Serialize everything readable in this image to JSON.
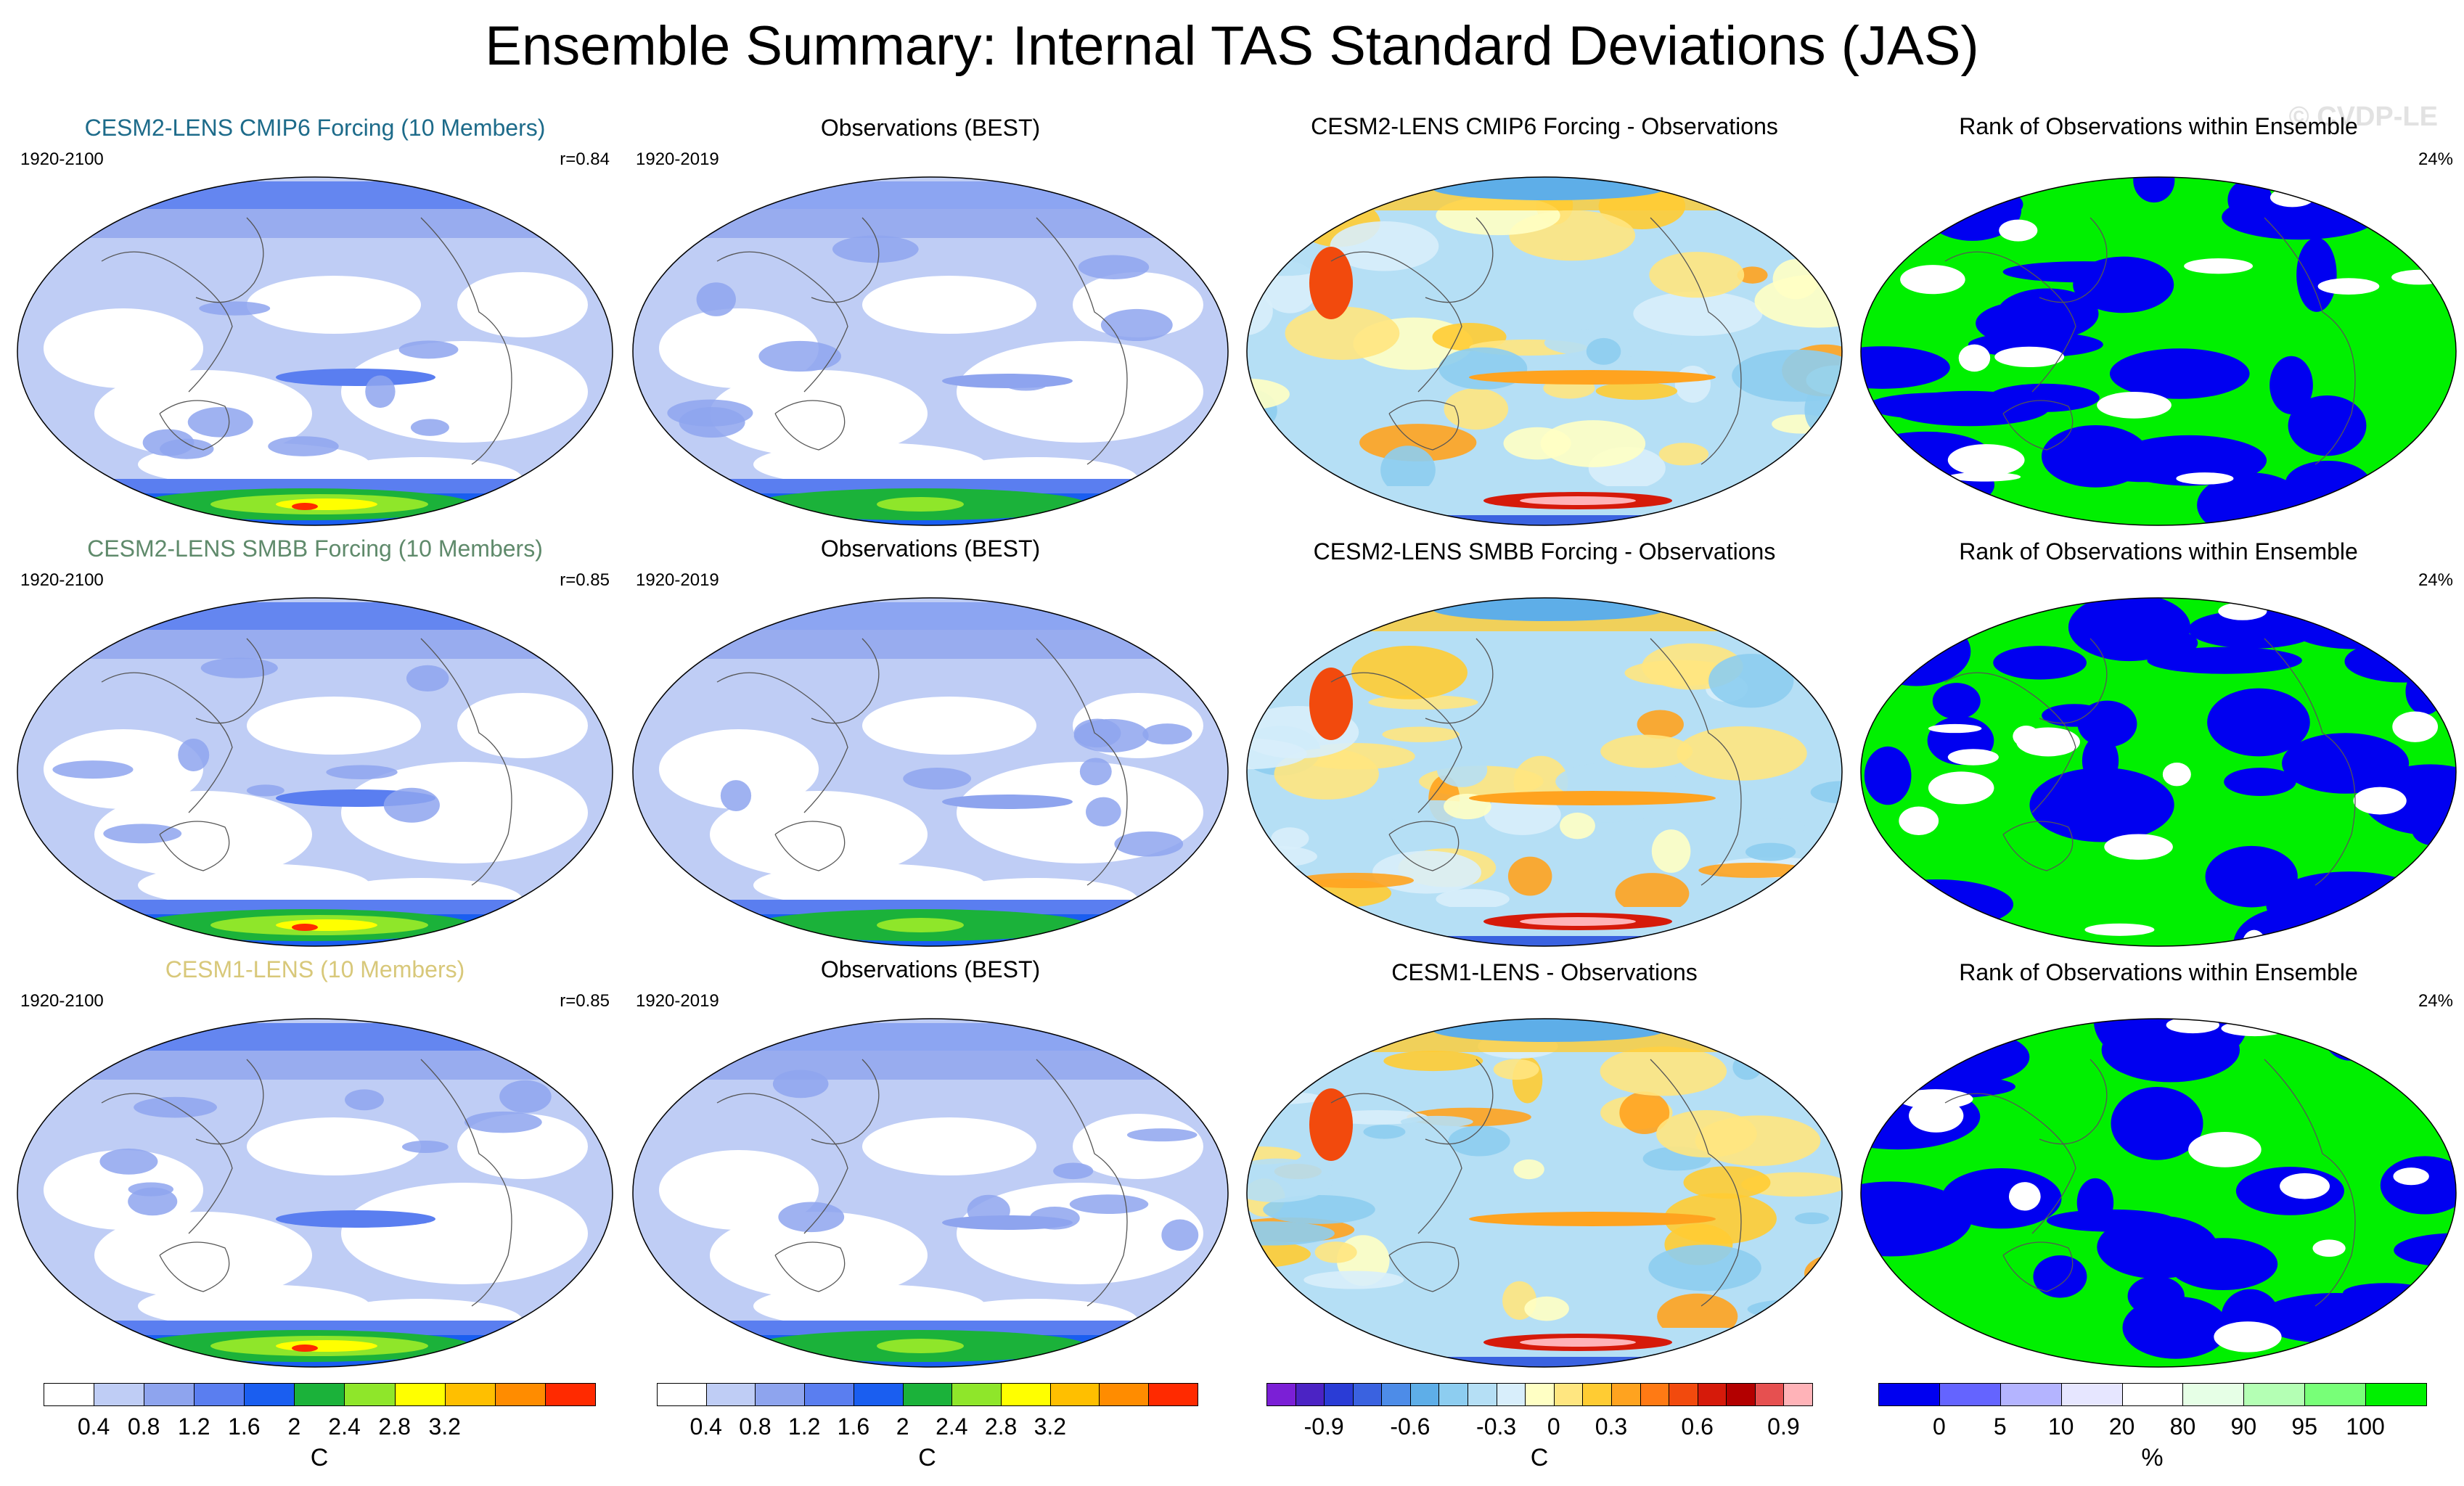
{
  "title": "Ensemble Summary: Internal TAS Standard Deviations (JAS)",
  "watermark": "© CVDP-LE",
  "rows": [
    {
      "model": {
        "title": "CESM2-LENS CMIP6 Forcing (10 Members)",
        "title_color": "#1d6b8a",
        "period": "1920-2100",
        "r": "r=0.84"
      },
      "obs": {
        "title": "Observations (BEST)",
        "period": "1920-2019"
      },
      "diff": {
        "title": "CESM2-LENS CMIP6 Forcing - Observations"
      },
      "rank": {
        "title": "Rank of Observations within Ensemble",
        "pct": "24%"
      }
    },
    {
      "model": {
        "title": "CESM2-LENS SMBB Forcing (10 Members)",
        "title_color": "#5f8a6b",
        "period": "1920-2100",
        "r": "r=0.85"
      },
      "obs": {
        "title": "Observations (BEST)",
        "period": "1920-2019"
      },
      "diff": {
        "title": "CESM2-LENS SMBB Forcing - Observations"
      },
      "rank": {
        "title": "Rank of Observations within Ensemble",
        "pct": "24%"
      }
    },
    {
      "model": {
        "title": "CESM1-LENS (10 Members)",
        "title_color": "#d8c87a",
        "period": "1920-2100",
        "r": "r=0.85"
      },
      "obs": {
        "title": "Observations (BEST)",
        "period": "1920-2019"
      },
      "diff": {
        "title": "CESM1-LENS - Observations"
      },
      "rank": {
        "title": "Rank of Observations within Ensemble",
        "pct": "24%"
      }
    }
  ],
  "colorbars": {
    "sd": {
      "colors": [
        "#ffffff",
        "#bfcdf5",
        "#8ea4ee",
        "#5a7ef0",
        "#1a5ef0",
        "#1bb23a",
        "#8fe62a",
        "#ffff00",
        "#ffbf00",
        "#ff8c00",
        "#ff2a00"
      ],
      "ticks": [
        "0.4",
        "0.8",
        "1.2",
        "1.6",
        "2",
        "2.4",
        "2.8",
        "3.2"
      ],
      "unit": "C"
    },
    "diff": {
      "colors": [
        "#7b1fd6",
        "#4b23c4",
        "#2a3cd6",
        "#3a62e0",
        "#4d8ce8",
        "#5eaee8",
        "#8dcdf0",
        "#b5dff5",
        "#d8eefb",
        "#ffffc4",
        "#ffe680",
        "#ffcc33",
        "#ffa31f",
        "#ff7a14",
        "#f24a0d",
        "#d61a0a",
        "#b30000",
        "#e65050",
        "#ffb3b8"
      ],
      "ticks": [
        "-0.9",
        "-0.6",
        "-0.3",
        "0",
        "0.3",
        "0.6",
        "0.9"
      ],
      "unit": "C"
    },
    "rank": {
      "colors": [
        "#0000f0",
        "#6464ff",
        "#b4b4ff",
        "#e6e6ff",
        "#ffffff",
        "#e6ffe6",
        "#b4ffb4",
        "#78ff78",
        "#00f000"
      ],
      "ticks": [
        "0",
        "5",
        "10",
        "20",
        "80",
        "90",
        "95",
        "100"
      ],
      "unit": "%"
    }
  }
}
